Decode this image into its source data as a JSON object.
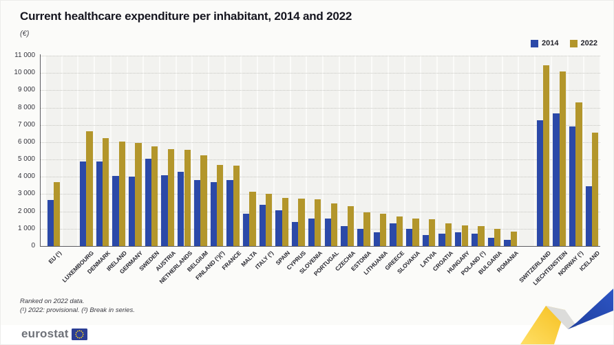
{
  "header": {
    "title": "Current healthcare expenditure per inhabitant, 2014 and 2022",
    "subtitle": "(€)"
  },
  "notes": {
    "line1": "Ranked on 2022 data.",
    "line2": "(¹) 2022: provisional. (²) Break in series."
  },
  "footer": {
    "logo_text": "eurostat"
  },
  "chart_data": {
    "type": "bar",
    "title": "Current healthcare expenditure per inhabitant, 2014 and 2022",
    "unit_label": "(€)",
    "ylabel": "EUR per inhabitant",
    "ylim": [
      0,
      11000
    ],
    "ytick_step": 1000,
    "grid": "horizontal-dotted",
    "legend_position": "top-right",
    "categories": [
      "EU (¹)",
      "LUXEMBOURG",
      "DENMARK",
      "IRELAND",
      "GERMANY",
      "SWEDEN",
      "AUSTRIA",
      "NETHERLANDS",
      "BELGIUM",
      "FINLAND (¹)(²)",
      "FRANCE",
      "MALTA",
      "ITALY (²)",
      "SPAIN",
      "CYPRUS",
      "SLOVENIA",
      "PORTUGAL",
      "CZECHIA",
      "ESTONIA",
      "LITHUANIA",
      "GREECE",
      "SLOVAKIA",
      "LATVIA",
      "CROATIA",
      "HUNGARY",
      "POLAND (¹)",
      "BULGARIA",
      "ROMANIA",
      "SWITZERLAND",
      "LIECHTENSTEIN",
      "NORWAY (¹)",
      "ICELAND"
    ],
    "gaps_after": [
      0,
      27
    ],
    "series": [
      {
        "name": "2014",
        "color": "#2b49a8",
        "values": [
          2650,
          4900,
          4900,
          4050,
          4000,
          5050,
          4100,
          4300,
          3800,
          3700,
          3800,
          1850,
          2400,
          2050,
          1400,
          1600,
          1600,
          1150,
          1000,
          800,
          1300,
          1000,
          650,
          700,
          800,
          700,
          470,
          360,
          7250,
          7650,
          6900,
          3450
        ]
      },
      {
        "name": "2022",
        "color": "#b3962b",
        "values": [
          3700,
          6650,
          6250,
          6050,
          5950,
          5750,
          5600,
          5550,
          5250,
          4700,
          4650,
          3150,
          3000,
          2800,
          2750,
          2700,
          2450,
          2300,
          1950,
          1850,
          1700,
          1580,
          1540,
          1300,
          1200,
          1150,
          1000,
          850,
          10450,
          10100,
          8300,
          6550
        ]
      }
    ]
  }
}
